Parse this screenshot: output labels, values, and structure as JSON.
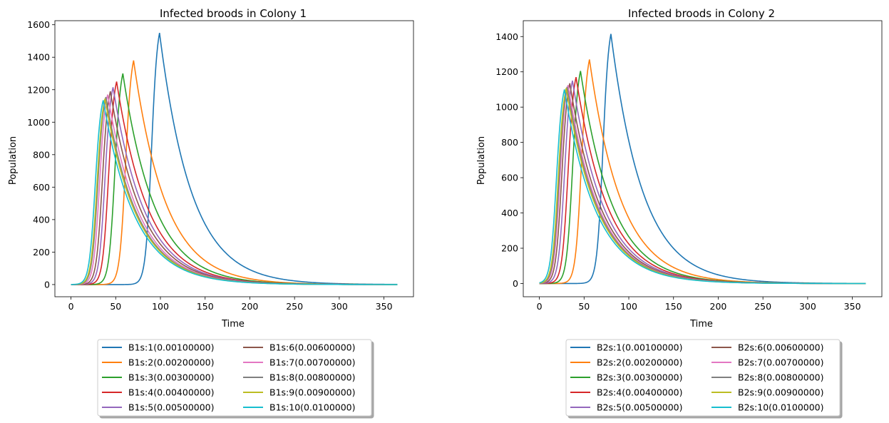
{
  "chart_data": [
    {
      "type": "line",
      "title": "Infected broods in Colony 1",
      "xlabel": "Time",
      "ylabel": "Population",
      "xlim": [
        -18,
        383
      ],
      "ylim": [
        -75,
        1625
      ],
      "xticks": [
        0,
        50,
        100,
        150,
        200,
        250,
        300,
        350
      ],
      "xtick_labels": [
        "0",
        "50",
        "100",
        "150",
        "200",
        "250",
        "300",
        "350"
      ],
      "yticks": [
        0,
        200,
        400,
        600,
        800,
        1000,
        1200,
        1400,
        1600
      ],
      "ytick_labels": [
        "0",
        "200",
        "400",
        "600",
        "800",
        "1000",
        "1200",
        "1400",
        "1600"
      ],
      "grid": false,
      "legend_position": "below",
      "series": [
        {
          "name": "B1s:1(0.00100000)",
          "peak_time": 99,
          "peak_value": 1550
        },
        {
          "name": "B1s:2(0.00200000)",
          "peak_time": 70,
          "peak_value": 1380
        },
        {
          "name": "B1s:3(0.00300000)",
          "peak_time": 58,
          "peak_value": 1300
        },
        {
          "name": "B1s:4(0.00400000)",
          "peak_time": 51,
          "peak_value": 1250
        },
        {
          "name": "B1s:5(0.00500000)",
          "peak_time": 47,
          "peak_value": 1215
        },
        {
          "name": "B1s:6(0.00600000)",
          "peak_time": 44,
          "peak_value": 1190
        },
        {
          "name": "B1s:7(0.00700000)",
          "peak_time": 41,
          "peak_value": 1170
        },
        {
          "name": "B1s:8(0.00800000)",
          "peak_time": 39,
          "peak_value": 1155
        },
        {
          "name": "B1s:9(0.00900000)",
          "peak_time": 38,
          "peak_value": 1145
        },
        {
          "name": "B1s:10(0.0100000)",
          "peak_time": 36,
          "peak_value": 1135
        }
      ]
    },
    {
      "type": "line",
      "title": "Infected broods in Colony 2",
      "xlabel": "Time",
      "ylabel": "Population",
      "xlim": [
        -18,
        383
      ],
      "ylim": [
        -75,
        1490
      ],
      "xticks": [
        0,
        50,
        100,
        150,
        200,
        250,
        300,
        350
      ],
      "xtick_labels": [
        "0",
        "50",
        "100",
        "150",
        "200",
        "250",
        "300",
        "350"
      ],
      "yticks": [
        0,
        200,
        400,
        600,
        800,
        1000,
        1200,
        1400
      ],
      "ytick_labels": [
        "0",
        "200",
        "400",
        "600",
        "800",
        "1000",
        "1200",
        "1400"
      ],
      "grid": false,
      "legend_position": "below",
      "series": [
        {
          "name": "B2s:1(0.00100000)",
          "peak_time": 80,
          "peak_value": 1415
        },
        {
          "name": "B2s:2(0.00200000)",
          "peak_time": 56,
          "peak_value": 1270
        },
        {
          "name": "B2s:3(0.00300000)",
          "peak_time": 46,
          "peak_value": 1205
        },
        {
          "name": "B2s:4(0.00400000)",
          "peak_time": 41,
          "peak_value": 1170
        },
        {
          "name": "B2s:5(0.00500000)",
          "peak_time": 37,
          "peak_value": 1150
        },
        {
          "name": "B2s:6(0.00600000)",
          "peak_time": 34,
          "peak_value": 1135
        },
        {
          "name": "B2s:7(0.00700000)",
          "peak_time": 32,
          "peak_value": 1125
        },
        {
          "name": "B2s:8(0.00800000)",
          "peak_time": 31,
          "peak_value": 1115
        },
        {
          "name": "B2s:9(0.00900000)",
          "peak_time": 30,
          "peak_value": 1108
        },
        {
          "name": "B2s:10(0.0100000)",
          "peak_time": 28,
          "peak_value": 1100
        }
      ]
    }
  ],
  "colors": [
    "#1f77b4",
    "#ff7f0e",
    "#2ca02c",
    "#d62728",
    "#9467bd",
    "#8c564b",
    "#e377c2",
    "#7f7f7f",
    "#bcbd22",
    "#17becf"
  ],
  "time_range": [
    0,
    365
  ]
}
